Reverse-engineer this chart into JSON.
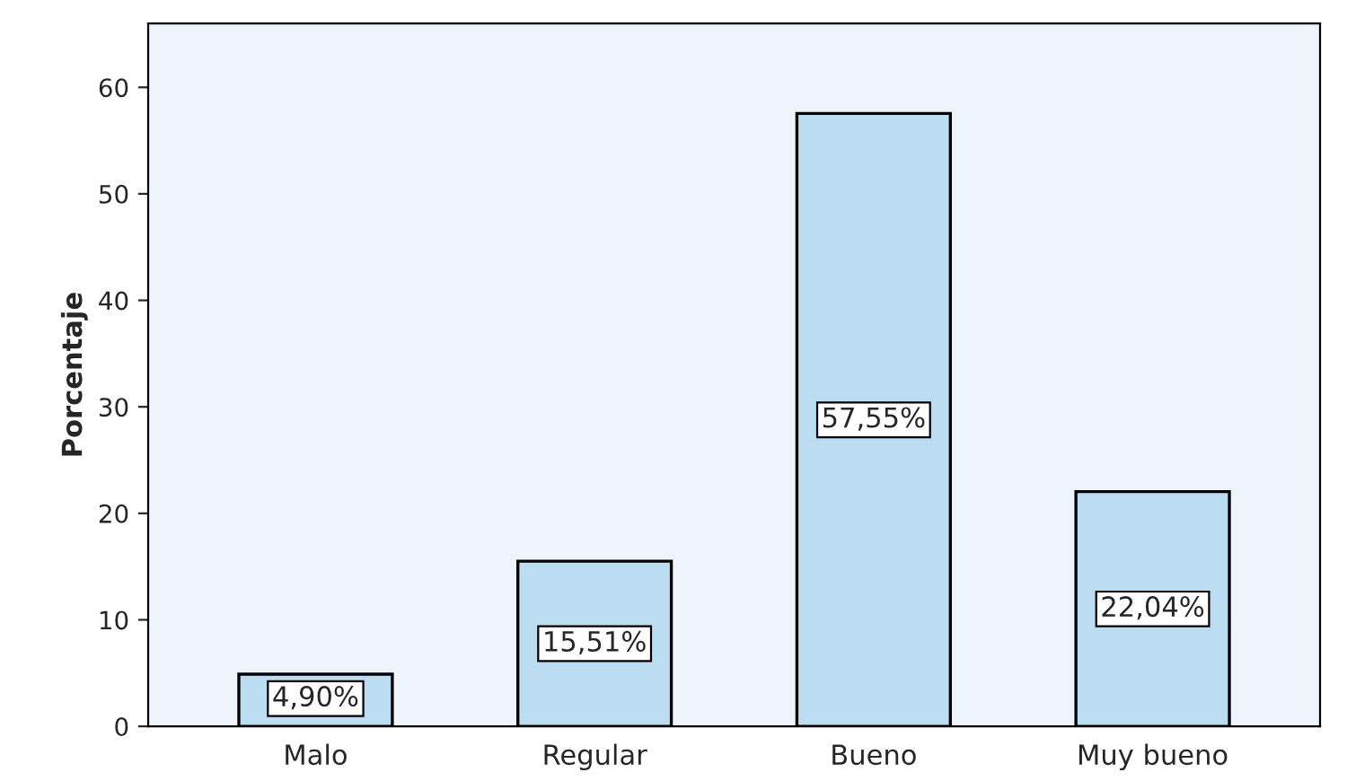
{
  "chart_data": {
    "type": "bar",
    "ylabel": "Porcentaje",
    "categories": [
      "Malo",
      "Regular",
      "Bueno",
      "Muy bueno"
    ],
    "values": [
      4.9,
      15.51,
      57.55,
      22.04
    ],
    "value_labels": [
      "4,90%",
      "15,51%",
      "57,55%",
      "22,04%"
    ],
    "color": "#bcdcf2",
    "ylim": [
      0,
      66
    ],
    "yticks": [
      0,
      10,
      20,
      30,
      40,
      50,
      60
    ],
    "grid": false
  }
}
